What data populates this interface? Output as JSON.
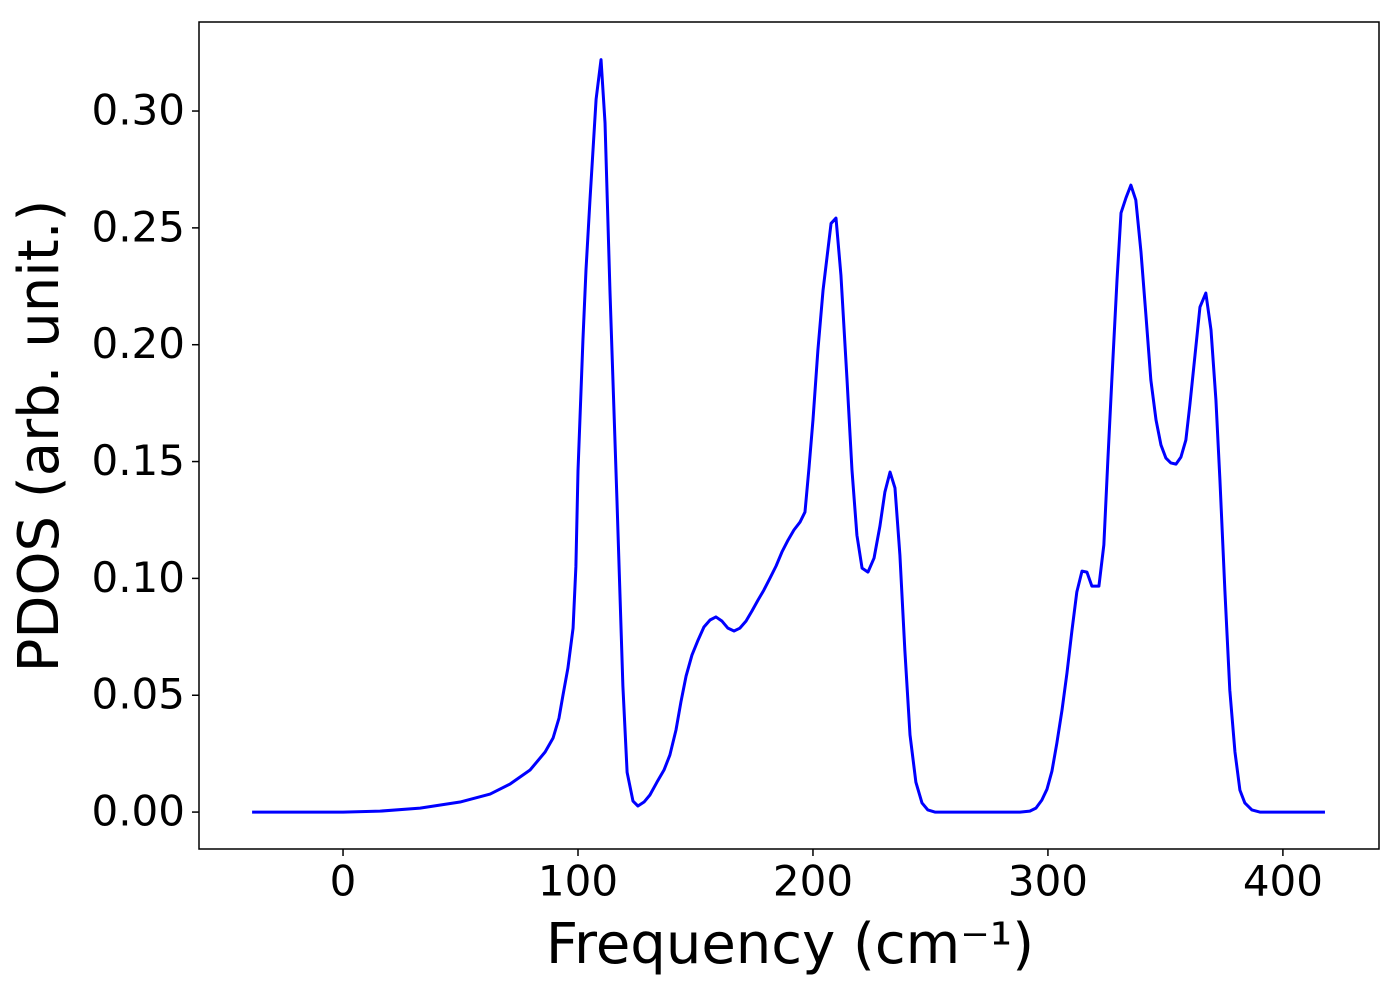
{
  "chart_data": {
    "type": "line",
    "xlabel": "Frequency (cm⁻¹)",
    "ylabel": "PDOS (arb. unit.)",
    "xlim": [
      -61.3,
      440.9
    ],
    "ylim": [
      -0.0158,
      0.3381
    ],
    "xticks": [
      0,
      100,
      200,
      300,
      400
    ],
    "yticks": [
      {
        "value": 0,
        "label": "0.00"
      },
      {
        "value": 0.05,
        "label": "0.05"
      },
      {
        "value": 0.1,
        "label": "0.10"
      },
      {
        "value": 0.15,
        "label": "0.15"
      },
      {
        "value": 0.2,
        "label": "0.20"
      },
      {
        "value": 0.25,
        "label": "0.25"
      },
      {
        "value": 0.3,
        "label": "0.30"
      }
    ],
    "grid": false,
    "color": "#0000ff",
    "x": [
      -38.7,
      0,
      15.7,
      32.8,
      49.8,
      62.6,
      71.1,
      79.6,
      86.0,
      89.4,
      91.9,
      93.6,
      95.7,
      97.9,
      99.1,
      100,
      102.1,
      103.4,
      105.1,
      107.7,
      109.8,
      111.5,
      113.6,
      116.6,
      119.1,
      120.9,
      123.4,
      125.5,
      128.1,
      130.6,
      133.6,
      136.6,
      139.1,
      141.7,
      143.8,
      146.0,
      148.5,
      151.1,
      153.6,
      156.2,
      158.7,
      161.3,
      163.8,
      166.4,
      168.9,
      171.5,
      174.0,
      176.6,
      179.1,
      181.7,
      184.3,
      186.8,
      189.4,
      191.9,
      194.5,
      196.6,
      198.3,
      200,
      202.1,
      204.3,
      207.7,
      209.8,
      211.9,
      214.5,
      216.6,
      218.7,
      220.9,
      223.4,
      226.0,
      228.5,
      230.6,
      232.8,
      234.9,
      237.0,
      239.1,
      241.3,
      243.8,
      246.4,
      248.9,
      251.9,
      288.1,
      292.3,
      294.9,
      297.4,
      299.6,
      301.7,
      303.8,
      306.0,
      308.1,
      310.2,
      312.3,
      314.5,
      316.6,
      318.7,
      321.7,
      323.8,
      325.5,
      327.2,
      329.4,
      331.1,
      333.2,
      335.3,
      337.4,
      339.6,
      341.7,
      343.8,
      346.0,
      348.1,
      350.2,
      352.3,
      354.5,
      356.6,
      358.7,
      360.4,
      362.6,
      364.7,
      367.2,
      369.4,
      371.5,
      373.2,
      375.3,
      377.4,
      379.6,
      381.7,
      383.8,
      386.8,
      390.2,
      417.9
    ],
    "values": [
      0,
      0,
      0.0004,
      0.0017,
      0.0043,
      0.0077,
      0.012,
      0.018,
      0.0257,
      0.0317,
      0.0402,
      0.05,
      0.0616,
      0.0787,
      0.105,
      0.146,
      0.202,
      0.232,
      0.262,
      0.305,
      0.322,
      0.295,
      0.223,
      0.133,
      0.054,
      0.017,
      0.0047,
      0.0026,
      0.0043,
      0.0073,
      0.0128,
      0.018,
      0.0244,
      0.0351,
      0.0471,
      0.0582,
      0.0672,
      0.0736,
      0.0792,
      0.0822,
      0.0835,
      0.0817,
      0.0787,
      0.0775,
      0.0787,
      0.0817,
      0.086,
      0.0907,
      0.095,
      0.1001,
      0.1053,
      0.1113,
      0.1164,
      0.1207,
      0.1241,
      0.1284,
      0.1472,
      0.1678,
      0.1977,
      0.2234,
      0.2519,
      0.2542,
      0.2298,
      0.1849,
      0.1464,
      0.1185,
      0.1044,
      0.1027,
      0.1087,
      0.1224,
      0.1369,
      0.1455,
      0.1387,
      0.11,
      0.0693,
      0.033,
      0.0128,
      0.0039,
      0.0009,
      0,
      0,
      0.0004,
      0.0017,
      0.0051,
      0.0098,
      0.0175,
      0.0295,
      0.0437,
      0.0595,
      0.0775,
      0.0942,
      0.1031,
      0.1027,
      0.0967,
      0.0967,
      0.1143,
      0.1506,
      0.1849,
      0.2277,
      0.2564,
      0.2628,
      0.2683,
      0.2619,
      0.2397,
      0.2127,
      0.1849,
      0.1678,
      0.1571,
      0.1515,
      0.1494,
      0.1489,
      0.1519,
      0.1592,
      0.1742,
      0.1956,
      0.2161,
      0.2221,
      0.2063,
      0.1763,
      0.1421,
      0.095,
      0.0522,
      0.0257,
      0.0094,
      0.0039,
      0.0009,
      0,
      0
    ]
  }
}
